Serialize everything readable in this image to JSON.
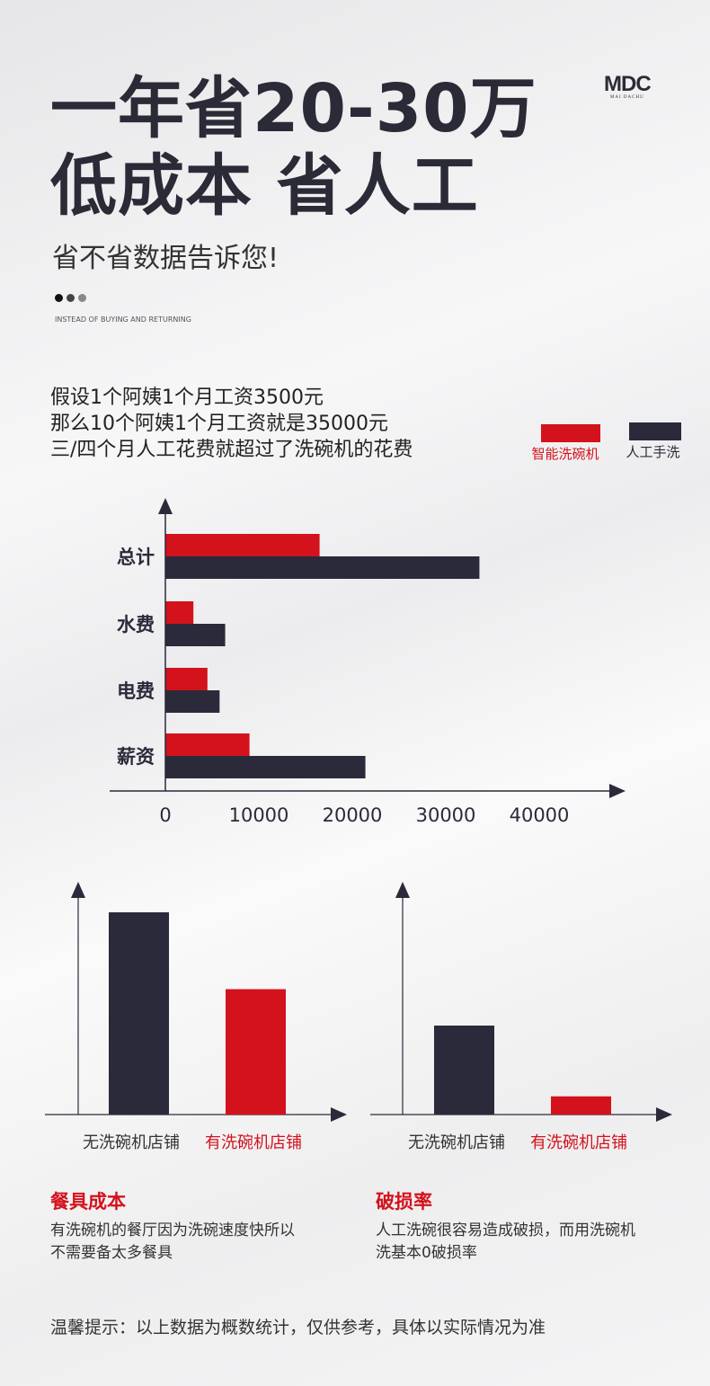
{
  "header": {
    "title_line1": "一年省20-30万",
    "title_line2": "低成本 省人工",
    "subtitle": "省不省数据告诉您!",
    "english_tagline": "INSTEAD OF BUYING AND RETURNING"
  },
  "logo": {
    "mark": "MDC",
    "text": "MAI DACHU"
  },
  "intro": [
    "假设1个阿姨1个月工资3500元",
    "那么10个阿姨1个月工资就是35000元",
    "三/四个月人工花费就超过了洗碗机的花费"
  ],
  "colors": {
    "red": "#d3121c",
    "dark": "#2b2a3a"
  },
  "chart_data": [
    {
      "type": "bar",
      "orientation": "horizontal",
      "categories": [
        "总计",
        "水费",
        "电费",
        "薪资"
      ],
      "series": [
        {
          "name": "智能洗碗机",
          "color": "#d3121c",
          "values": [
            16500,
            3000,
            4500,
            9000
          ]
        },
        {
          "name": "人工手洗",
          "color": "#2b2a3a",
          "values": [
            33600,
            6400,
            5800,
            21400
          ]
        }
      ],
      "xticks": [
        0,
        10000,
        20000,
        30000,
        40000
      ],
      "xlim": [
        0,
        48000
      ],
      "legend": "top-right"
    },
    {
      "type": "bar",
      "categories": [
        "无洗碗机店铺",
        "有洗碗机店铺"
      ],
      "values": [
        100,
        62
      ],
      "colors": [
        "#2b2a3a",
        "#d3121c"
      ],
      "ylim": [
        0,
        110
      ]
    },
    {
      "type": "bar",
      "categories": [
        "无洗碗机店铺",
        "有洗碗机店铺"
      ],
      "values": [
        44,
        9
      ],
      "colors": [
        "#2b2a3a",
        "#d3121c"
      ],
      "ylim": [
        0,
        110
      ]
    }
  ],
  "notes": [
    {
      "title": "餐具成本",
      "text": [
        "有洗碗机的餐厅因为洗碗速度快所以",
        "不需要备太多餐具"
      ]
    },
    {
      "title": "破损率",
      "text": [
        "人工洗碗很容易造成破损，而用洗碗机",
        "洗基本0破损率"
      ]
    }
  ],
  "footer": "温馨提示：以上数据为概数统计，仅供参考，具体以实际情况为准"
}
